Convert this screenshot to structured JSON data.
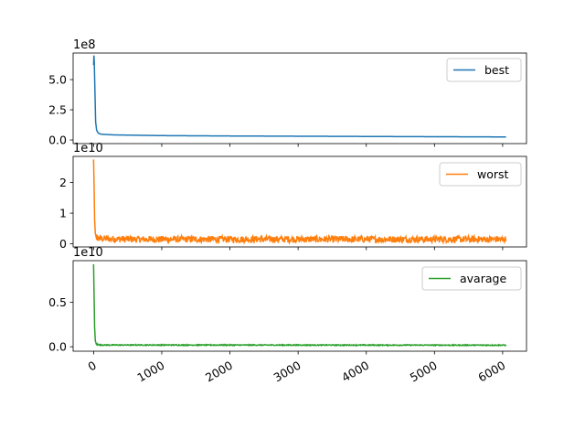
{
  "chart_data": [
    {
      "type": "line",
      "series": [
        {
          "name": "best",
          "color": "#1f77b4"
        }
      ],
      "offset_text": "1e8",
      "yticks": [
        0.0,
        2.5,
        5.0
      ],
      "ytick_labels": [
        "0.0",
        "2.5",
        "5.0"
      ],
      "ylim": [
        -0.3,
        7.2
      ],
      "xlim": [
        -300,
        6350
      ],
      "xticks_visible": false,
      "noise": 0.0,
      "points": [
        [
          0,
          6.2
        ],
        [
          5,
          7.0
        ],
        [
          10,
          6.5
        ],
        [
          20,
          4.0
        ],
        [
          30,
          1.5
        ],
        [
          45,
          0.8
        ],
        [
          70,
          0.55
        ],
        [
          120,
          0.47
        ],
        [
          300,
          0.42
        ],
        [
          1000,
          0.36
        ],
        [
          2000,
          0.33
        ],
        [
          3000,
          0.31
        ],
        [
          4000,
          0.29
        ],
        [
          5000,
          0.27
        ],
        [
          6050,
          0.25
        ]
      ],
      "legend_loc": "upper right"
    },
    {
      "type": "line",
      "series": [
        {
          "name": "worst",
          "color": "#ff7f0e"
        }
      ],
      "offset_text": "1e10",
      "yticks": [
        0,
        1,
        2
      ],
      "ytick_labels": [
        "0",
        "1",
        "2"
      ],
      "ylim": [
        -0.1,
        2.85
      ],
      "xlim": [
        -300,
        6350
      ],
      "xticks_visible": false,
      "noise": 0.11,
      "points": [
        [
          0,
          2.75
        ],
        [
          8,
          1.8
        ],
        [
          15,
          0.8
        ],
        [
          25,
          0.35
        ],
        [
          40,
          0.2
        ],
        [
          100,
          0.17
        ],
        [
          500,
          0.15
        ],
        [
          6050,
          0.15
        ]
      ],
      "legend_loc": "upper right"
    },
    {
      "type": "line",
      "series": [
        {
          "name": "avarage",
          "color": "#2ca02c"
        }
      ],
      "offset_text": "1e10",
      "yticks": [
        0.0,
        0.5
      ],
      "ytick_labels": [
        "0.0",
        "0.5"
      ],
      "ylim": [
        -0.05,
        0.97
      ],
      "xlim": [
        -300,
        6350
      ],
      "xticks_visible": true,
      "noise": 0.005,
      "points": [
        [
          0,
          0.93
        ],
        [
          8,
          0.55
        ],
        [
          15,
          0.22
        ],
        [
          25,
          0.07
        ],
        [
          40,
          0.03
        ],
        [
          100,
          0.02
        ],
        [
          6050,
          0.018
        ]
      ],
      "legend_loc": "upper right"
    }
  ],
  "xaxis": {
    "ticks": [
      0,
      1000,
      2000,
      3000,
      4000,
      5000,
      6000
    ],
    "tick_labels": [
      "0",
      "1000",
      "2000",
      "3000",
      "4000",
      "5000",
      "6000"
    ],
    "label_rotation": "30 degrees"
  }
}
